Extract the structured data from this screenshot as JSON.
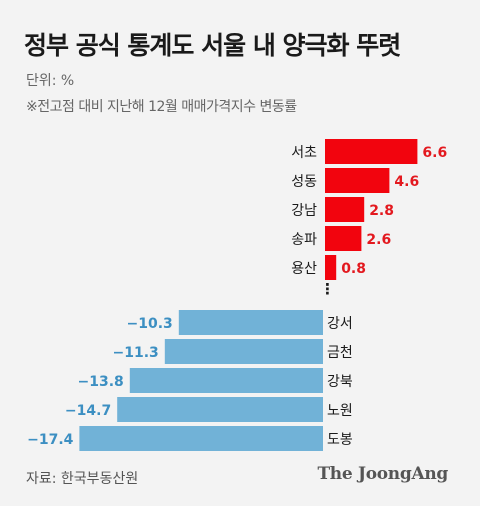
{
  "header": {
    "title": "정부 공식 통계도 서울 내 양극화 뚜렷",
    "unit": "단위: %",
    "note": "※전고점 대비 지난해 12월 매매가격지수 변동률"
  },
  "footer": {
    "source": "자료: 한국부동산원",
    "logo": "The JoongAng"
  },
  "colors": {
    "positive": "#f2040e",
    "negative": "#71b2d7",
    "positive_label": "#e3191f",
    "negative_label": "#3c8fc2"
  },
  "chart_data": {
    "type": "bar",
    "orientation": "horizontal",
    "categories": [
      "서초",
      "성동",
      "강남",
      "송파",
      "용산",
      "강서",
      "금천",
      "강북",
      "노원",
      "도봉"
    ],
    "values": [
      6.6,
      4.6,
      2.8,
      2.6,
      0.8,
      -10.3,
      -11.3,
      -13.8,
      -14.7,
      -17.4
    ],
    "value_labels": [
      "6.6",
      "4.6",
      "2.8",
      "2.6",
      "0.8",
      "−10.3",
      "−11.3",
      "−13.8",
      "−14.7",
      "−17.4"
    ],
    "ellipsis": "⋮"
  }
}
